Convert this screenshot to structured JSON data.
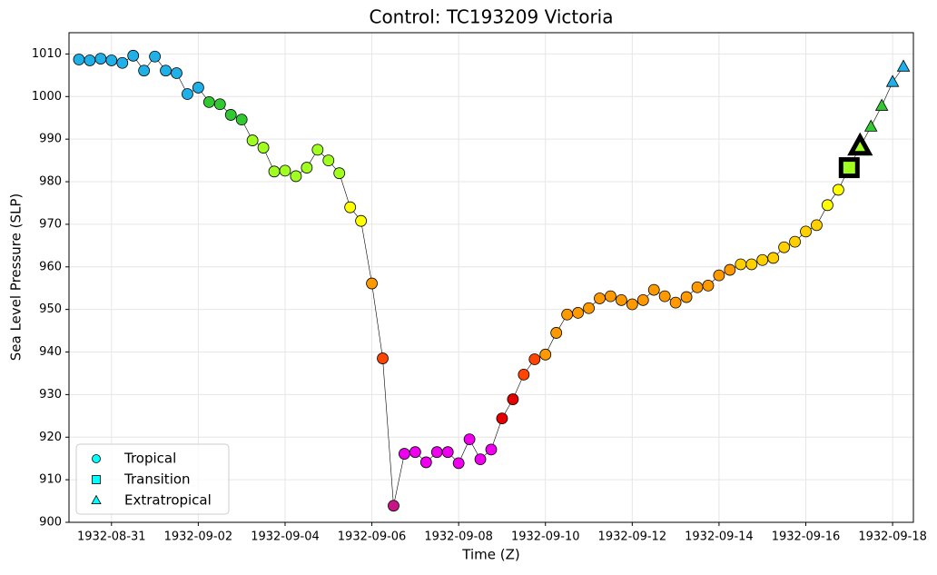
{
  "chart_data": {
    "type": "line",
    "title": "Control: TC193209 Victoria",
    "x_label": "Time (Z)",
    "y_label": "Sea Level Pressure (SLP)",
    "x": [
      "1932-08-30T06:00",
      "1932-08-30T12:00",
      "1932-08-30T18:00",
      "1932-08-31T00:00",
      "1932-08-31T06:00",
      "1932-08-31T12:00",
      "1932-08-31T18:00",
      "1932-09-01T00:00",
      "1932-09-01T06:00",
      "1932-09-01T12:00",
      "1932-09-01T18:00",
      "1932-09-02T00:00",
      "1932-09-02T06:00",
      "1932-09-02T12:00",
      "1932-09-02T18:00",
      "1932-09-03T00:00",
      "1932-09-03T06:00",
      "1932-09-03T12:00",
      "1932-09-03T18:00",
      "1932-09-04T00:00",
      "1932-09-04T06:00",
      "1932-09-04T12:00",
      "1932-09-04T18:00",
      "1932-09-05T00:00",
      "1932-09-05T06:00",
      "1932-09-05T12:00",
      "1932-09-05T18:00",
      "1932-09-06T00:00",
      "1932-09-06T06:00",
      "1932-09-06T12:00",
      "1932-09-06T18:00",
      "1932-09-07T00:00",
      "1932-09-07T06:00",
      "1932-09-07T12:00",
      "1932-09-07T18:00",
      "1932-09-08T00:00",
      "1932-09-08T06:00",
      "1932-09-08T12:00",
      "1932-09-08T18:00",
      "1932-09-09T00:00",
      "1932-09-09T06:00",
      "1932-09-09T12:00",
      "1932-09-09T18:00",
      "1932-09-10T00:00",
      "1932-09-10T06:00",
      "1932-09-10T12:00",
      "1932-09-10T18:00",
      "1932-09-11T00:00",
      "1932-09-11T06:00",
      "1932-09-11T12:00",
      "1932-09-11T18:00",
      "1932-09-12T00:00",
      "1932-09-12T06:00",
      "1932-09-12T12:00",
      "1932-09-12T18:00",
      "1932-09-13T00:00",
      "1932-09-13T06:00",
      "1932-09-13T12:00",
      "1932-09-13T18:00",
      "1932-09-14T00:00",
      "1932-09-14T06:00",
      "1932-09-14T12:00",
      "1932-09-14T18:00",
      "1932-09-15T00:00",
      "1932-09-15T06:00",
      "1932-09-15T12:00",
      "1932-09-15T18:00",
      "1932-09-16T00:00",
      "1932-09-16T06:00",
      "1932-09-16T12:00",
      "1932-09-16T18:00",
      "1932-09-17T00:00",
      "1932-09-17T06:00",
      "1932-09-17T12:00",
      "1932-09-17T18:00",
      "1932-09-18T00:00",
      "1932-09-18T06:00"
    ],
    "values": [
      1008.7,
      1008.5,
      1008.9,
      1008.5,
      1007.9,
      1009.6,
      1006.1,
      1009.4,
      1006.1,
      1005.5,
      1000.6,
      1002.1,
      998.7,
      998.2,
      995.7,
      994.6,
      989.7,
      988.0,
      982.4,
      982.6,
      981.3,
      983.3,
      987.5,
      985.0,
      982.0,
      974.0,
      970.8,
      956.1,
      938.5,
      903.9,
      916.1,
      916.5,
      914.1,
      916.5,
      916.5,
      913.9,
      919.5,
      914.8,
      917.1,
      924.4,
      928.9,
      934.7,
      938.3,
      939.4,
      944.5,
      948.8,
      949.2,
      950.3,
      952.6,
      953.1,
      952.2,
      951.2,
      952.2,
      954.6,
      953.1,
      951.6,
      952.9,
      955.2,
      955.6,
      958.0,
      959.3,
      960.6,
      960.6,
      961.6,
      962.1,
      964.6,
      965.9,
      968.3,
      969.8,
      974.5,
      978.1,
      983.3,
      988.2,
      992.9,
      997.8,
      1003.4,
      1007.0
    ],
    "colors": [
      "#1fb0e8",
      "#1fb0e8",
      "#1fb0e8",
      "#1fb0e8",
      "#1fb0e8",
      "#1fb0e8",
      "#1fb0e8",
      "#1fb0e8",
      "#1fb0e8",
      "#1fb0e8",
      "#1fb0e8",
      "#1fb0e8",
      "#32c832",
      "#32c832",
      "#32c832",
      "#32c832",
      "#a0ff20",
      "#a0ff20",
      "#a0ff20",
      "#a0ff20",
      "#a0ff20",
      "#a0ff20",
      "#a0ff20",
      "#a0ff20",
      "#a0ff20",
      "#ffff00",
      "#ffff00",
      "#ff9900",
      "#ff4500",
      "#c71585",
      "#ee00ee",
      "#ee00ee",
      "#ee00ee",
      "#ee00ee",
      "#ee00ee",
      "#ee00ee",
      "#ee00ee",
      "#ee00ee",
      "#ee00ee",
      "#e60000",
      "#e60000",
      "#ff4500",
      "#ff4500",
      "#ff9900",
      "#ff9900",
      "#ff9900",
      "#ff9900",
      "#ff9900",
      "#ff9900",
      "#ff9900",
      "#ff9900",
      "#ff9900",
      "#ff9900",
      "#ff9900",
      "#ff9900",
      "#ff9900",
      "#ff9900",
      "#ff9900",
      "#ff9900",
      "#ff9900",
      "#ff9900",
      "#ffd000",
      "#ffd000",
      "#ffd000",
      "#ffd000",
      "#ffd000",
      "#ffd000",
      "#ffd000",
      "#ffd000",
      "#ffff00",
      "#ffff00",
      "#a0ff20",
      "#a0ff20",
      "#32c832",
      "#32c832",
      "#1fb0e8",
      "#1fb0e8"
    ],
    "markers": [
      "o",
      "o",
      "o",
      "o",
      "o",
      "o",
      "o",
      "o",
      "o",
      "o",
      "o",
      "o",
      "o",
      "o",
      "o",
      "o",
      "o",
      "o",
      "o",
      "o",
      "o",
      "o",
      "o",
      "o",
      "o",
      "o",
      "o",
      "o",
      "o",
      "o",
      "o",
      "o",
      "o",
      "o",
      "o",
      "o",
      "o",
      "o",
      "o",
      "o",
      "o",
      "o",
      "o",
      "o",
      "o",
      "o",
      "o",
      "o",
      "o",
      "o",
      "o",
      "o",
      "o",
      "o",
      "o",
      "o",
      "o",
      "o",
      "o",
      "o",
      "o",
      "o",
      "o",
      "o",
      "o",
      "o",
      "o",
      "o",
      "o",
      "o",
      "o",
      "s",
      "^",
      "^",
      "^",
      "^",
      "^"
    ],
    "highlighted": [
      71,
      72
    ],
    "legend": [
      {
        "name": "Tropical",
        "marker": "o",
        "color": "#00ffff"
      },
      {
        "name": "Transition",
        "marker": "s",
        "color": "#00ffff"
      },
      {
        "name": "Extratropical",
        "marker": "^",
        "color": "#00ffff"
      }
    ],
    "legend_position": "lower left",
    "xlim": [
      "1932-08-30T00:30",
      "1932-09-18T11:30"
    ],
    "xticks": [
      "1932-08-31",
      "1932-09-02",
      "1932-09-04",
      "1932-09-06",
      "1932-09-08",
      "1932-09-10",
      "1932-09-12",
      "1932-09-14",
      "1932-09-16",
      "1932-09-18"
    ],
    "ylim": [
      900,
      1015
    ],
    "yticks": [
      900,
      910,
      920,
      930,
      940,
      950,
      960,
      970,
      980,
      990,
      1000,
      1010
    ],
    "grid": true
  }
}
